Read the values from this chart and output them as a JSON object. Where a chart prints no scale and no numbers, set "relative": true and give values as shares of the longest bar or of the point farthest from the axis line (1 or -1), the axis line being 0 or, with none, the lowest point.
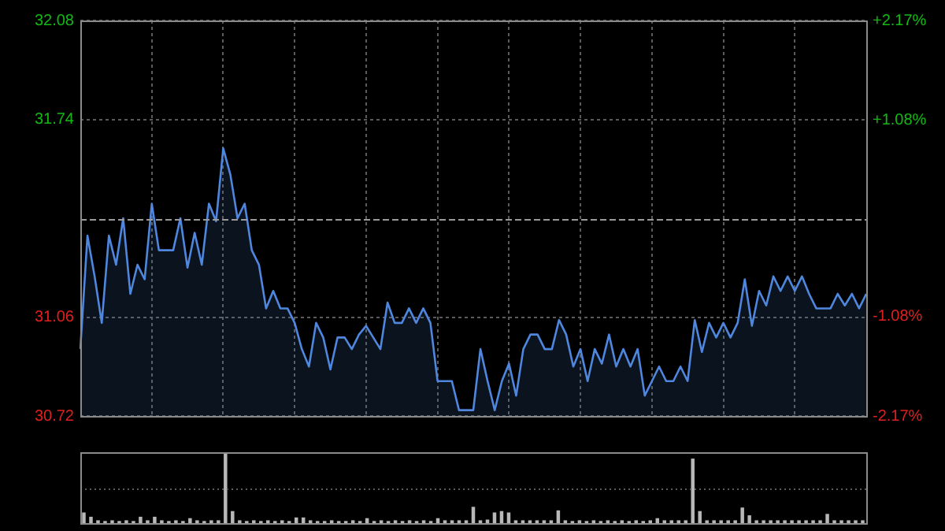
{
  "chart_data": [
    {
      "type": "area",
      "color": "#4f86de",
      "categories": [
        null,
        null,
        null,
        null,
        null,
        null,
        null,
        null,
        null,
        null,
        null,
        null,
        null,
        null,
        null,
        null,
        null,
        null,
        null,
        null,
        null,
        null,
        null,
        null,
        null,
        null,
        null,
        null,
        null,
        null,
        null,
        null,
        null,
        null,
        null,
        null,
        null,
        null,
        null,
        null,
        null,
        null,
        null,
        null,
        null,
        null,
        null,
        null,
        null,
        null,
        null,
        null,
        null,
        null,
        null,
        null,
        null,
        null,
        null,
        null,
        null,
        null,
        null,
        null,
        null,
        null,
        null,
        null,
        null,
        null,
        null,
        null,
        null,
        null,
        null,
        null,
        null,
        null,
        null,
        null,
        null,
        null,
        null,
        null,
        null,
        null,
        null,
        null,
        null,
        null,
        null,
        null,
        null,
        null,
        null,
        null,
        null,
        null,
        null,
        null,
        null,
        null,
        null,
        null,
        null,
        null,
        null,
        null,
        null,
        null,
        null
      ],
      "values": [
        30.95,
        31.34,
        31.2,
        31.04,
        31.34,
        31.24,
        31.4,
        31.14,
        31.24,
        31.19,
        31.45,
        31.29,
        31.29,
        31.29,
        31.4,
        31.23,
        31.35,
        31.24,
        31.45,
        31.39,
        31.64,
        31.55,
        31.4,
        31.45,
        31.29,
        31.24,
        31.09,
        31.15,
        31.09,
        31.09,
        31.04,
        30.95,
        30.89,
        31.04,
        30.99,
        30.88,
        30.99,
        30.99,
        30.95,
        31.0,
        31.03,
        30.99,
        30.95,
        31.11,
        31.04,
        31.04,
        31.09,
        31.04,
        31.09,
        31.04,
        30.84,
        30.84,
        30.84,
        30.74,
        30.74,
        30.74,
        30.95,
        30.84,
        30.74,
        30.84,
        30.9,
        30.79,
        30.95,
        31.0,
        31.0,
        30.95,
        30.95,
        31.05,
        31.0,
        30.89,
        30.95,
        30.84,
        30.95,
        30.9,
        31.0,
        30.89,
        30.95,
        30.89,
        30.95,
        30.79,
        30.84,
        30.89,
        30.84,
        30.84,
        30.89,
        30.84,
        31.05,
        30.94,
        31.04,
        30.99,
        31.04,
        30.99,
        31.04,
        31.19,
        31.03,
        31.15,
        31.1,
        31.2,
        31.15,
        31.2,
        31.15,
        31.2,
        31.14,
        31.09,
        31.09,
        31.09,
        31.14,
        31.1,
        31.14,
        31.09,
        31.14
      ],
      "ylim": [
        30.72,
        32.08
      ],
      "yticks": [
        30.72,
        31.06,
        31.74,
        32.08
      ],
      "y2lim": [
        -2.17,
        2.17
      ],
      "y2ticks": [
        {
          "value": -2.17,
          "label": "-2.17%"
        },
        {
          "value": -1.08,
          "label": "-1.08%"
        },
        {
          "value": 1.08,
          "label": "+1.08%"
        },
        {
          "value": 2.17,
          "label": "+2.17%"
        }
      ],
      "ref_lines": [
        {
          "axis": "y",
          "value": 31.4,
          "line_style": "dashed"
        }
      ],
      "grid": true,
      "tick_labels": "y",
      "legend": false,
      "marker": "none"
    },
    {
      "type": "bar",
      "color": "#b8b8b8",
      "relative": true,
      "tick_labels": false,
      "legend": false,
      "ref_lines": [
        {
          "axis": "y",
          "value": 0.5,
          "line_style": "dotted",
          "color": "#5a5a5a"
        }
      ],
      "categories": [
        null,
        null,
        null,
        null,
        null,
        null,
        null,
        null,
        null,
        null,
        null,
        null,
        null,
        null,
        null,
        null,
        null,
        null,
        null,
        null,
        null,
        null,
        null,
        null,
        null,
        null,
        null,
        null,
        null,
        null,
        null,
        null,
        null,
        null,
        null,
        null,
        null,
        null,
        null,
        null,
        null,
        null,
        null,
        null,
        null,
        null,
        null,
        null,
        null,
        null,
        null,
        null,
        null,
        null,
        null,
        null,
        null,
        null,
        null,
        null,
        null,
        null,
        null,
        null,
        null,
        null,
        null,
        null,
        null,
        null,
        null,
        null,
        null,
        null,
        null,
        null,
        null,
        null,
        null,
        null,
        null,
        null,
        null,
        null,
        null,
        null,
        null,
        null,
        null,
        null,
        null,
        null,
        null,
        null,
        null,
        null,
        null,
        null,
        null,
        null,
        null,
        null,
        null,
        null,
        null,
        null,
        null,
        null,
        null,
        null,
        null
      ],
      "values": [
        0.15,
        0.09,
        0.04,
        0.03,
        0.04,
        0.03,
        0.04,
        0.03,
        0.09,
        0.04,
        0.09,
        0.04,
        0.03,
        0.04,
        0.03,
        0.07,
        0.04,
        0.03,
        0.04,
        0.04,
        1.0,
        0.17,
        0.04,
        0.03,
        0.04,
        0.03,
        0.04,
        0.03,
        0.04,
        0.03,
        0.08,
        0.08,
        0.04,
        0.03,
        0.03,
        0.04,
        0.03,
        0.03,
        0.04,
        0.03,
        0.07,
        0.03,
        0.04,
        0.03,
        0.04,
        0.03,
        0.04,
        0.03,
        0.04,
        0.03,
        0.07,
        0.04,
        0.04,
        0.04,
        0.04,
        0.23,
        0.04,
        0.05,
        0.15,
        0.17,
        0.15,
        0.04,
        0.04,
        0.04,
        0.04,
        0.04,
        0.04,
        0.18,
        0.04,
        0.03,
        0.04,
        0.03,
        0.04,
        0.03,
        0.04,
        0.03,
        0.04,
        0.03,
        0.04,
        0.03,
        0.04,
        0.07,
        0.04,
        0.04,
        0.04,
        0.04,
        0.91,
        0.17,
        0.04,
        0.04,
        0.04,
        0.04,
        0.04,
        0.22,
        0.11,
        0.04,
        0.04,
        0.04,
        0.04,
        0.04,
        0.04,
        0.04,
        0.04,
        0.04,
        0.04,
        0.13,
        0.04,
        0.04,
        0.04,
        0.04,
        0.04
      ]
    }
  ]
}
